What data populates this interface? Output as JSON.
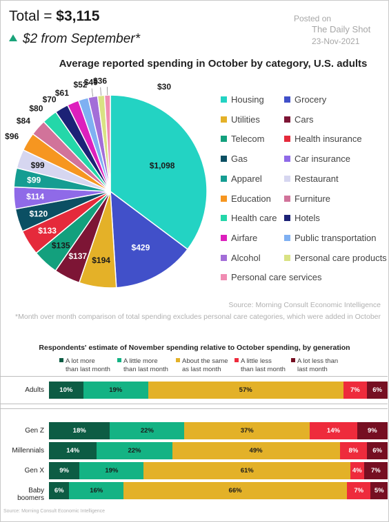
{
  "header": {
    "total_label": "Total = ",
    "total_value": "$3,115",
    "change_text": "$2 from September*"
  },
  "watermark": {
    "posted_on": "Posted on",
    "source": "The Daily Shot",
    "date": "23-Nov-2021"
  },
  "chart_data": [
    {
      "type": "pie",
      "title": "Average reported spending in October by category, U.S. adults",
      "categories": [
        "Housing",
        "Grocery",
        "Utilities",
        "Cars",
        "Telecom",
        "Health insurance",
        "Gas",
        "Car insurance",
        "Apparel",
        "Restaurant",
        "Education",
        "Furniture",
        "Health care",
        "Hotels",
        "Airfare",
        "Public transportation",
        "Alcohol",
        "Personal care products",
        "Personal care services"
      ],
      "values": [
        1098,
        429,
        194,
        137,
        135,
        133,
        120,
        114,
        99,
        99,
        96,
        84,
        80,
        70,
        61,
        52,
        49,
        36,
        30
      ],
      "value_labels": [
        "$1,098",
        "$429",
        "$194",
        "$137",
        "$135",
        "$133",
        "$120",
        "$114",
        "$99",
        "$99",
        "$96",
        "$84",
        "$80",
        "$70",
        "$61",
        "$52",
        "$49",
        "$36",
        "$30"
      ],
      "colors": [
        "#23d3c3",
        "#4150c9",
        "#e4b128",
        "#7d1535",
        "#13a07d",
        "#e52a3b",
        "#0b4f63",
        "#8f6ae8",
        "#159d92",
        "#d6d6f0",
        "#f69620",
        "#d1739a",
        "#24d7a9",
        "#1c2276",
        "#dd1fbd",
        "#7fb0f2",
        "#a36ed8",
        "#d9e283",
        "#f08cb2"
      ],
      "legend": [
        "Housing",
        "Grocery",
        "Utilities",
        "Cars",
        "Telecom",
        "Health insurance",
        "Gas",
        "Car insurance",
        "Apparel",
        "Restaurant",
        "Education",
        "Furniture",
        "Health care",
        "Hotels",
        "Airfare",
        "Public transportation",
        "Alcohol",
        "Personal care products",
        "Personal care services"
      ],
      "source": "Source: Morning Consult Economic Intelligence",
      "footnote": "*Month over month comparison of total spending excludes personal care categories, which were added in October"
    },
    {
      "type": "bar",
      "stacked": true,
      "orientation": "horizontal",
      "title": "Respondents' estimate of November spending relative to October spending, by generation",
      "categories": [
        "Adults",
        "Gen Z",
        "Millennials",
        "Gen X",
        "Baby boomers"
      ],
      "series": [
        {
          "name": "A lot more than last month",
          "legend_lines": [
            "A lot more",
            "than last month"
          ],
          "color": "#0d5c44",
          "values": [
            10,
            18,
            14,
            9,
            6
          ],
          "labels": [
            "10%",
            "18%",
            "14%",
            "9%",
            "6%"
          ]
        },
        {
          "name": "A little more than last month",
          "legend_lines": [
            "A little more",
            "than last month"
          ],
          "color": "#14b384",
          "values": [
            19,
            22,
            22,
            19,
            16
          ],
          "labels": [
            "19%",
            "22%",
            "22%",
            "19%",
            "16%"
          ]
        },
        {
          "name": "About the same as last month",
          "legend_lines": [
            "About the same",
            "as last month"
          ],
          "color": "#e3b128",
          "values": [
            57,
            37,
            49,
            61,
            66
          ],
          "labels": [
            "57%",
            "37%",
            "49%",
            "61%",
            "66%"
          ]
        },
        {
          "name": "A little less than last month",
          "legend_lines": [
            "A little less",
            "than last month"
          ],
          "color": "#ee2b3c",
          "values": [
            7,
            14,
            8,
            4,
            7
          ],
          "labels": [
            "7%",
            "14%",
            "8%",
            "4%",
            "7%"
          ]
        },
        {
          "name": "A lot less than last month",
          "legend_lines": [
            "A lot less than",
            "last month"
          ],
          "color": "#760f22",
          "values": [
            6,
            9,
            6,
            7,
            5
          ],
          "labels": [
            "6%",
            "9%",
            "6%",
            "7%",
            "5%"
          ]
        }
      ],
      "source": "Source: Morning Consult Economic Intelligence"
    }
  ]
}
